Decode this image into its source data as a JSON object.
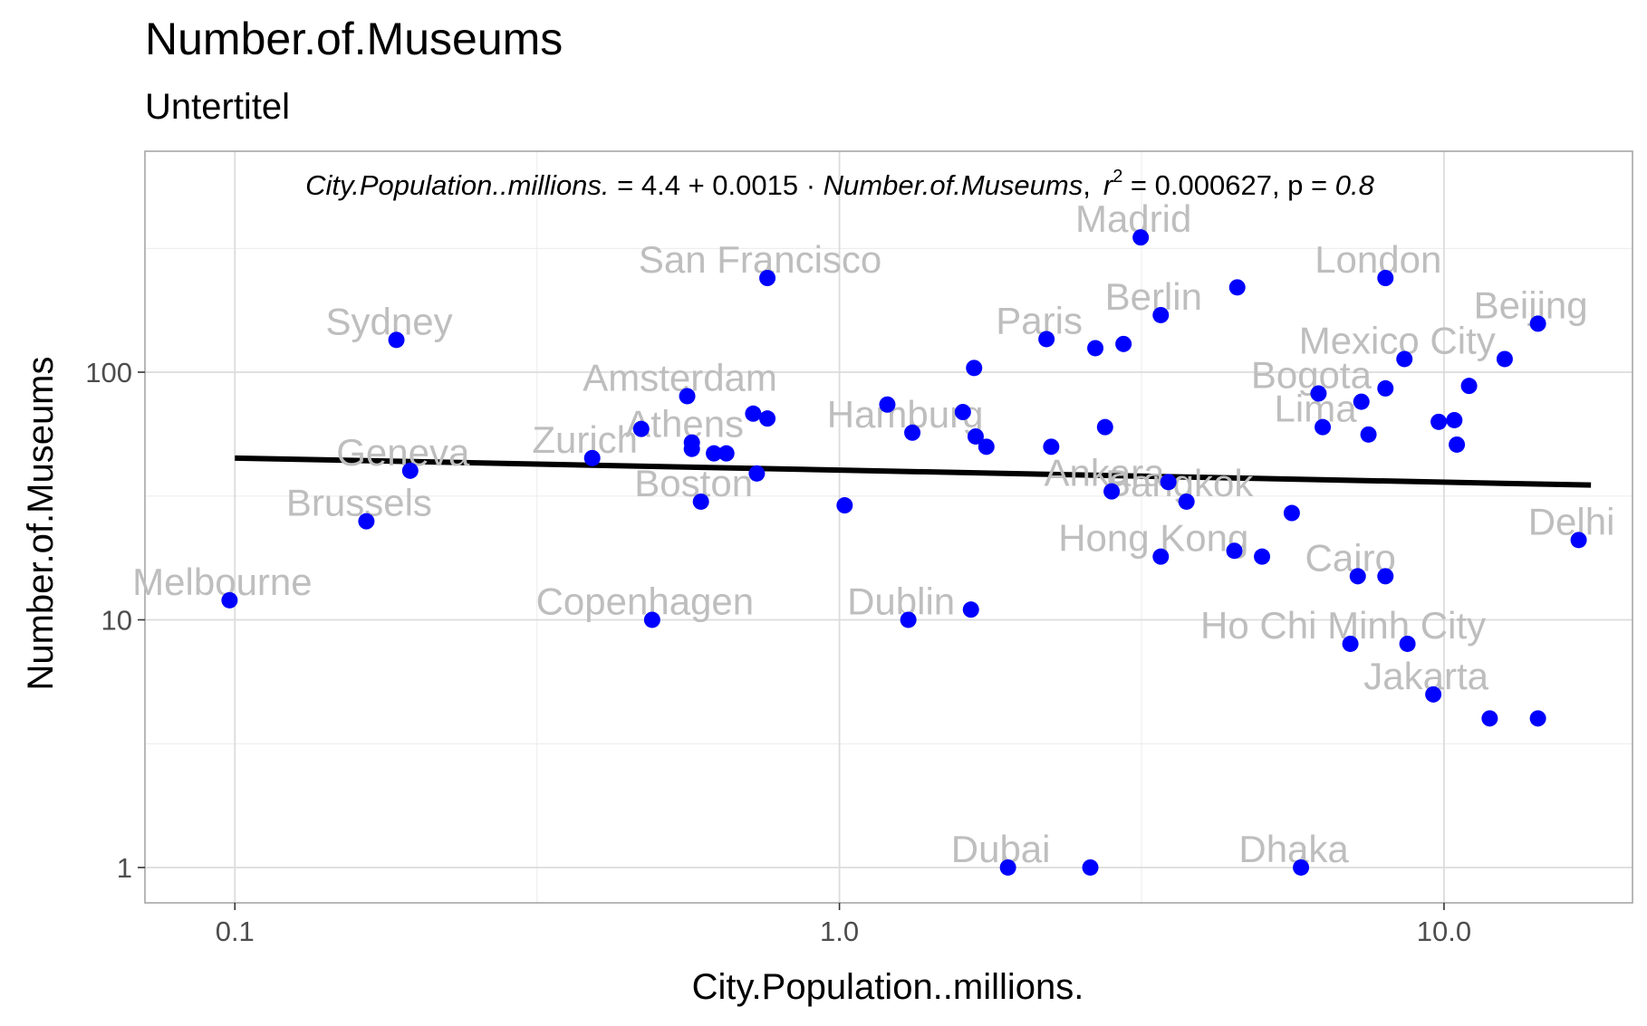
{
  "chart_data": {
    "type": "scatter",
    "title": "Number.of.Museums",
    "subtitle": "Untertitel",
    "xlabel": "City.Population..millions.",
    "ylabel": "Number.of.Museums",
    "x_scale": "log10",
    "y_scale": "log10",
    "xlim": [
      0.071,
      20.5
    ],
    "ylim": [
      0.72,
      780
    ],
    "x_ticks": [
      {
        "value": 0.1,
        "label": "0.1"
      },
      {
        "value": 1,
        "label": "1.0"
      },
      {
        "value": 10,
        "label": "10.0"
      }
    ],
    "x_minor_gridlines": [
      0.316,
      3.16
    ],
    "y_ticks": [
      {
        "value": 1,
        "label": "1"
      },
      {
        "value": 10,
        "label": "10"
      },
      {
        "value": 100,
        "label": "100"
      }
    ],
    "y_minor_gridlines": [
      3.16,
      31.6,
      316
    ],
    "grid": true,
    "point_color": "#0000ff",
    "label_color": "#bebebe",
    "line_color": "#000000",
    "annotation": {
      "x_term": "City.Population..millions.",
      "eq": " = 4.4 + 0.0015 · ",
      "y_term": "Number.of.Museums",
      "sep": ",",
      "r": "r",
      "sup": "2",
      "r2_val": " = 0.000627,  p = ",
      "p_val": "0.8"
    },
    "trend_line": {
      "x": [
        0.1,
        17.5
      ],
      "y": [
        45,
        35
      ]
    },
    "points": [
      {
        "x": 0.098,
        "y": 12,
        "label": "Melbourne"
      },
      {
        "x": 0.165,
        "y": 25,
        "label": "Brussels"
      },
      {
        "x": 0.185,
        "y": 135,
        "label": "Sydney"
      },
      {
        "x": 0.195,
        "y": 40,
        "label": "Geneva"
      },
      {
        "x": 0.39,
        "y": 45,
        "label": "Zurich"
      },
      {
        "x": 0.47,
        "y": 59,
        "label": ""
      },
      {
        "x": 0.49,
        "y": 10,
        "label": "Copenhagen"
      },
      {
        "x": 0.56,
        "y": 80,
        "label": "Amsterdam"
      },
      {
        "x": 0.57,
        "y": 52,
        "label": "Athens"
      },
      {
        "x": 0.57,
        "y": 49,
        "label": ""
      },
      {
        "x": 0.59,
        "y": 30,
        "label": "Boston"
      },
      {
        "x": 0.62,
        "y": 47,
        "label": ""
      },
      {
        "x": 0.65,
        "y": 47,
        "label": ""
      },
      {
        "x": 0.72,
        "y": 68,
        "label": ""
      },
      {
        "x": 0.73,
        "y": 39,
        "label": ""
      },
      {
        "x": 0.76,
        "y": 65,
        "label": ""
      },
      {
        "x": 0.76,
        "y": 240,
        "label": "San Francisco"
      },
      {
        "x": 1.02,
        "y": 29,
        "label": ""
      },
      {
        "x": 1.2,
        "y": 74,
        "label": ""
      },
      {
        "x": 1.3,
        "y": 10,
        "label": "Dublin"
      },
      {
        "x": 1.32,
        "y": 57,
        "label": "Hamburg"
      },
      {
        "x": 1.6,
        "y": 69,
        "label": ""
      },
      {
        "x": 1.65,
        "y": 11,
        "label": ""
      },
      {
        "x": 1.67,
        "y": 104,
        "label": ""
      },
      {
        "x": 1.68,
        "y": 55,
        "label": ""
      },
      {
        "x": 1.75,
        "y": 50,
        "label": ""
      },
      {
        "x": 1.9,
        "y": 1,
        "label": "Dubai"
      },
      {
        "x": 2.2,
        "y": 136,
        "label": "Paris"
      },
      {
        "x": 2.24,
        "y": 50,
        "label": ""
      },
      {
        "x": 2.6,
        "y": 1,
        "label": ""
      },
      {
        "x": 2.65,
        "y": 125,
        "label": ""
      },
      {
        "x": 2.75,
        "y": 60,
        "label": ""
      },
      {
        "x": 2.82,
        "y": 33,
        "label": "Ankara"
      },
      {
        "x": 2.95,
        "y": 130,
        "label": ""
      },
      {
        "x": 3.15,
        "y": 350,
        "label": "Madrid"
      },
      {
        "x": 3.4,
        "y": 170,
        "label": "Berlin"
      },
      {
        "x": 3.4,
        "y": 18,
        "label": "Hong Kong"
      },
      {
        "x": 3.5,
        "y": 36,
        "label": ""
      },
      {
        "x": 3.75,
        "y": 30,
        "label": "Bangkok"
      },
      {
        "x": 4.5,
        "y": 19,
        "label": ""
      },
      {
        "x": 4.55,
        "y": 220,
        "label": ""
      },
      {
        "x": 5.0,
        "y": 18,
        "label": ""
      },
      {
        "x": 5.6,
        "y": 27,
        "label": ""
      },
      {
        "x": 5.8,
        "y": 1,
        "label": "Dhaka"
      },
      {
        "x": 6.2,
        "y": 82,
        "label": "Bogota"
      },
      {
        "x": 6.3,
        "y": 60,
        "label": "Lima"
      },
      {
        "x": 7.0,
        "y": 8,
        "label": "Ho Chi Minh City"
      },
      {
        "x": 7.2,
        "y": 15,
        "label": "Cairo"
      },
      {
        "x": 7.3,
        "y": 76,
        "label": ""
      },
      {
        "x": 7.5,
        "y": 56,
        "label": ""
      },
      {
        "x": 8.0,
        "y": 240,
        "label": "London"
      },
      {
        "x": 8.0,
        "y": 86,
        "label": ""
      },
      {
        "x": 8.0,
        "y": 15,
        "label": ""
      },
      {
        "x": 8.6,
        "y": 113,
        "label": "Mexico City"
      },
      {
        "x": 8.7,
        "y": 8,
        "label": ""
      },
      {
        "x": 9.6,
        "y": 5,
        "label": "Jakarta"
      },
      {
        "x": 9.8,
        "y": 63,
        "label": ""
      },
      {
        "x": 10.4,
        "y": 64,
        "label": ""
      },
      {
        "x": 10.5,
        "y": 51,
        "label": ""
      },
      {
        "x": 11.0,
        "y": 88,
        "label": ""
      },
      {
        "x": 11.9,
        "y": 4,
        "label": ""
      },
      {
        "x": 12.6,
        "y": 113,
        "label": ""
      },
      {
        "x": 14.3,
        "y": 4,
        "label": ""
      },
      {
        "x": 14.3,
        "y": 157,
        "label": "Beijing"
      },
      {
        "x": 16.7,
        "y": 21,
        "label": "Delhi"
      }
    ]
  }
}
